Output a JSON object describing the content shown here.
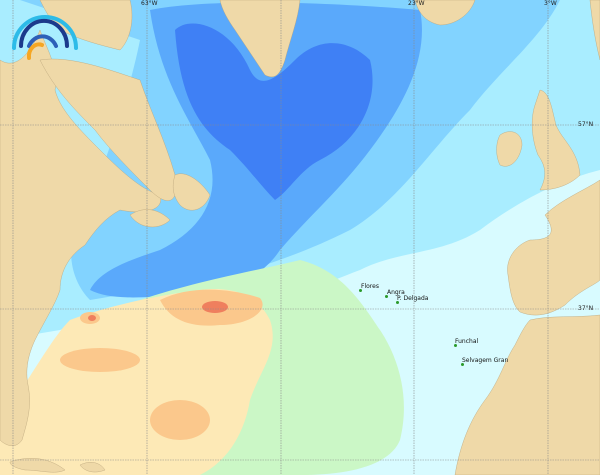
{
  "map": {
    "type": "ocean field map (North Atlantic)",
    "colors": {
      "land": "#efd9a8",
      "band_deep_blue": "#3f80f5",
      "band_blue": "#5aa9fb",
      "band_light_blue": "#82d3ff",
      "band_cyan": "#a9edff",
      "band_pale_cyan": "#d8fbff",
      "band_green": "#cbf7c6",
      "band_yellow": "#fde9b6",
      "band_orange": "#fbc88c",
      "band_red": "#ef7f5e",
      "grid": "#8a8a8a"
    },
    "grid_labels": {
      "lon_63w": "63°W",
      "lon_23w": "23°W",
      "lon_3w": "3°W",
      "lat_57n": "57°N",
      "lat_37n": "37°N"
    },
    "places": [
      {
        "name": "Flores"
      },
      {
        "name": "Angra"
      },
      {
        "name": "P. Delgada"
      },
      {
        "name": "Funchal"
      },
      {
        "name": "Selvagem Gran"
      }
    ]
  },
  "logo": {
    "icon": "rainbow-arcs-logo",
    "colors": [
      "#2dbbe8",
      "#1b3a8c",
      "#2d5fb8",
      "#f5a623"
    ]
  }
}
